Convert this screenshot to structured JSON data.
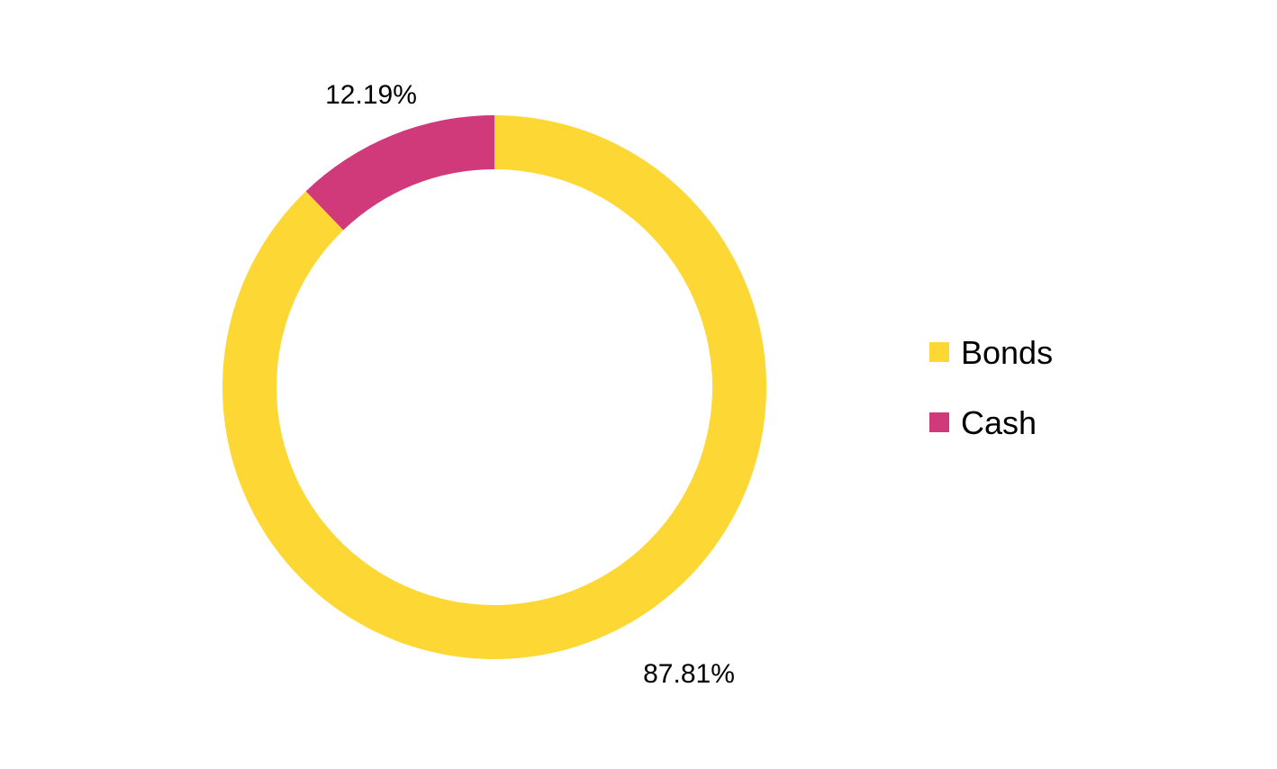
{
  "chart_data": {
    "type": "pie",
    "variant": "donut",
    "categories": [
      "Bonds",
      "Cash"
    ],
    "values": [
      87.81,
      12.19
    ],
    "data_labels": [
      "87.81%",
      "12.19%"
    ],
    "colors": [
      "#FDD835",
      "#D13A7A"
    ],
    "legend": {
      "position": "right",
      "entries": [
        "Bonds",
        "Cash"
      ]
    },
    "title": ""
  }
}
